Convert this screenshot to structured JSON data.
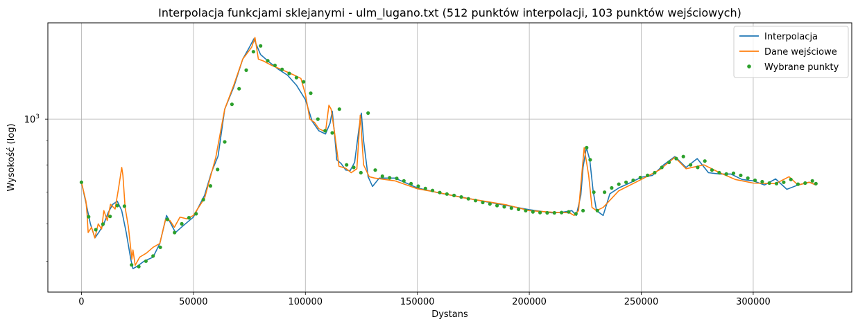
{
  "chart_data": {
    "type": "line",
    "title": "Interpolacja funkcjami sklejanymi - ulm_lugano.txt (512 punktów interpolacji, 103 punktów wejściowych)",
    "xlabel": "Dystans",
    "ylabel": "Wysokość (log)",
    "yscale": "log",
    "xlim": [
      -15000,
      344000
    ],
    "ylim": [
      430,
      1600
    ],
    "grid": true,
    "legend_position": "top-right",
    "x_ticks": [
      0,
      50000,
      100000,
      150000,
      200000,
      250000,
      300000
    ],
    "x_tick_labels": [
      "0",
      "50000",
      "100000",
      "150000",
      "200000",
      "250000",
      "300000"
    ],
    "y_major_tick": 1000,
    "y_major_label_base": "10",
    "y_major_label_exp": "3",
    "series": [
      {
        "name": "Interpolacja",
        "color": "#1f77b4",
        "x": [
          0,
          2000,
          4000,
          6000,
          8000,
          10000,
          12000,
          14000,
          16000,
          18000,
          20000,
          22000,
          23000,
          25000,
          28000,
          32000,
          35000,
          38000,
          42000,
          45000,
          50000,
          55000,
          58000,
          61000,
          64000,
          68000,
          72000,
          75000,
          77000,
          80000,
          84000,
          88000,
          92000,
          96000,
          100000,
          103000,
          106000,
          109000,
          111000,
          112000,
          113000,
          114000,
          116000,
          118000,
          120000,
          122000,
          124000,
          125000,
          126000,
          128000,
          130000,
          133000,
          140000,
          150000,
          160000,
          170000,
          180000,
          190000,
          200000,
          210000,
          215000,
          219000,
          221000,
          223000,
          224000,
          225500,
          227000,
          228500,
          230000,
          233000,
          236000,
          240000,
          245000,
          250000,
          255000,
          260000,
          265000,
          270000,
          275000,
          280000,
          285000,
          290000,
          295000,
          300000,
          305000,
          310000,
          315000,
          320000,
          325000,
          328000
        ],
        "y": [
          735,
          665,
          600,
          560,
          578,
          600,
          635,
          660,
          670,
          640,
          575,
          505,
          482,
          488,
          500,
          510,
          545,
          625,
          575,
          592,
          620,
          690,
          770,
          835,
          1050,
          1170,
          1340,
          1420,
          1480,
          1370,
          1320,
          1275,
          1240,
          1180,
          1100,
          990,
          945,
          930,
          980,
          1040,
          935,
          820,
          805,
          780,
          778,
          810,
          960,
          1030,
          900,
          755,
          720,
          750,
          750,
          715,
          697,
          683,
          669,
          656,
          643,
          633,
          635,
          640,
          625,
          690,
          790,
          870,
          820,
          705,
          640,
          625,
          695,
          715,
          733,
          753,
          760,
          800,
          833,
          790,
          825,
          770,
          765,
          765,
          745,
          740,
          725,
          747,
          710,
          725,
          735,
          725
        ]
      },
      {
        "name": "Dane wejściowe",
        "color": "#ff7f0e",
        "x": [
          0,
          2000,
          2500,
          3000,
          4500,
          6000,
          7500,
          9000,
          10000,
          11500,
          13000,
          15000,
          16500,
          18000,
          18500,
          19500,
          21000,
          22500,
          23000,
          24000,
          26000,
          29000,
          32000,
          35000,
          37500,
          39500,
          41500,
          44000,
          47000,
          50000,
          55000,
          60000,
          64000,
          68000,
          72000,
          76000,
          77500,
          79000,
          81000,
          85000,
          90000,
          95000,
          98000,
          100000,
          102000,
          104000,
          106000,
          109000,
          110500,
          111500,
          113000,
          115000,
          118000,
          120500,
          123000,
          124500,
          126000,
          128500,
          131000,
          140000,
          150000,
          160000,
          170000,
          180000,
          190000,
          200000,
          210000,
          218000,
          220000,
          222000,
          224500,
          226500,
          228000,
          230000,
          233000,
          240000,
          250000,
          258000,
          265000,
          270000,
          278000,
          285000,
          292000,
          300000,
          310000,
          316000,
          320000,
          325000,
          328000
        ],
        "y": [
          735,
          670,
          630,
          575,
          590,
          560,
          600,
          585,
          640,
          610,
          660,
          645,
          710,
          790,
          760,
          650,
          590,
          505,
          528,
          490,
          510,
          520,
          535,
          545,
          612,
          610,
          590,
          620,
          615,
          625,
          680,
          830,
          1050,
          1180,
          1340,
          1420,
          1490,
          1340,
          1330,
          1300,
          1270,
          1240,
          1220,
          1130,
          1000,
          985,
          955,
          940,
          1070,
          1050,
          940,
          795,
          787,
          770,
          785,
          1020,
          800,
          755,
          750,
          740,
          712,
          698,
          682,
          670,
          658,
          640,
          635,
          633,
          625,
          640,
          870,
          760,
          650,
          640,
          650,
          705,
          745,
          780,
          830,
          785,
          800,
          770,
          745,
          732,
          730,
          755,
          725,
          735,
          725
        ]
      },
      {
        "name": "Wybrane punkty",
        "color": "#2ca02c",
        "x": [
          0,
          3200,
          6400,
          9600,
          12800,
          16000,
          19200,
          22400,
          25600,
          28800,
          32000,
          35200,
          38400,
          41600,
          44800,
          48000,
          51200,
          54400,
          57600,
          60800,
          64000,
          67200,
          70400,
          73600,
          76800,
          80000,
          83200,
          86400,
          89600,
          92800,
          96000,
          99200,
          102400,
          105600,
          108800,
          112000,
          115200,
          118400,
          121600,
          124800,
          128000,
          131200,
          134400,
          137600,
          140800,
          144000,
          147200,
          150400,
          153600,
          156800,
          160000,
          163200,
          166400,
          169600,
          172800,
          176000,
          179200,
          182400,
          185600,
          188800,
          192000,
          195200,
          198400,
          201600,
          204800,
          208000,
          211200,
          214400,
          217600,
          220800,
          224000,
          225600,
          227200,
          228800,
          230400,
          233600,
          236800,
          240000,
          243200,
          246400,
          249600,
          252800,
          256000,
          259200,
          262400,
          265600,
          268800,
          272000,
          275200,
          278400,
          281600,
          284800,
          288000,
          291200,
          294400,
          297600,
          300800,
          304000,
          307200,
          310400,
          313600,
          316800,
          320000,
          323200,
          326400,
          328000
        ],
        "y": [
          735,
          621,
          583,
          599,
          622,
          656,
          654,
          491,
          487,
          500,
          513,
          535,
          613,
          575,
          600,
          618,
          630,
          675,
          722,
          782,
          895,
          1075,
          1160,
          1270,
          1390,
          1430,
          1330,
          1300,
          1275,
          1250,
          1225,
          1200,
          1135,
          1000,
          945,
          935,
          1050,
          800,
          790,
          770,
          1030,
          780,
          757,
          751,
          749,
          740,
          730,
          721,
          713,
          706,
          699,
          694,
          689,
          684,
          678,
          672,
          666,
          661,
          656,
          652,
          648,
          644,
          640,
          636,
          634,
          633,
          633,
          634,
          636,
          630,
          640,
          870,
          820,
          700,
          640,
          700,
          715,
          728,
          735,
          742,
          752,
          760,
          770,
          790,
          810,
          825,
          833,
          800,
          790,
          815,
          780,
          770,
          765,
          768,
          760,
          750,
          742,
          737,
          732,
          730,
          735,
          745,
          728,
          732,
          740,
          730
        ]
      }
    ]
  }
}
